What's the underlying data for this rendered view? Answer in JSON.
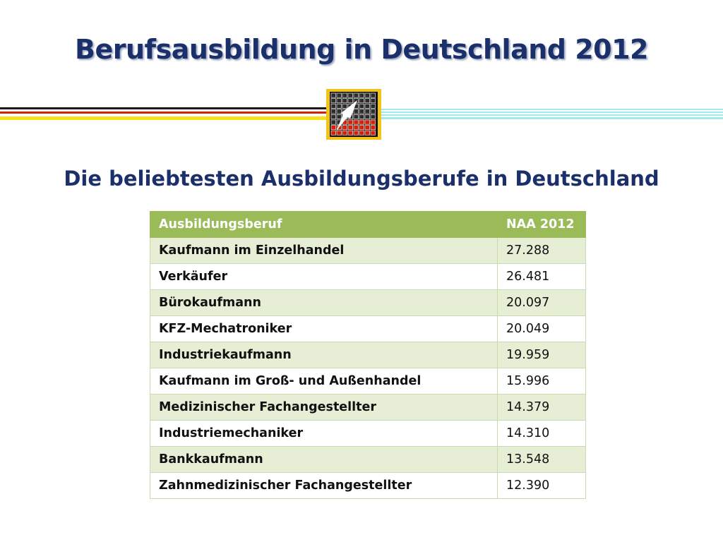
{
  "slide": {
    "title": "Berufsausbildung in Deutschland 2012",
    "subtitle": "Die beliebtesten Ausbildungsberufe in Deutschland"
  },
  "colors": {
    "title": "#1b2f6b",
    "header_green": "#9bbb59",
    "row_light_green": "#e6eed6",
    "flag_black": "#1a1a1a",
    "flag_red": "#d81e05",
    "flag_gold": "#f4e11a",
    "stripe_cyan": "#9fe9f0"
  },
  "logo": {
    "icon": "grid-arrow-emblem-icon"
  },
  "table": {
    "headers": [
      "Ausbildungsberuf",
      "NAA 2012"
    ],
    "rows": [
      {
        "job": "Kaufmann im Einzelhandel",
        "value": "27.288"
      },
      {
        "job": "Verkäufer",
        "value": "26.481"
      },
      {
        "job": "Bürokaufmann",
        "value": "20.097"
      },
      {
        "job": "KFZ-Mechatroniker",
        "value": "20.049"
      },
      {
        "job": "Industriekaufmann",
        "value": "19.959"
      },
      {
        "job": "Kaufmann im Groß- und Außenhandel",
        "value": "15.996"
      },
      {
        "job": "Medizinischer Fachangestellter",
        "value": "14.379"
      },
      {
        "job": "Industriemechaniker",
        "value": "14.310"
      },
      {
        "job": "Bankkaufmann",
        "value": "13.548"
      },
      {
        "job": "Zahnmedizinischer Fachangestellter",
        "value": "12.390"
      }
    ]
  }
}
